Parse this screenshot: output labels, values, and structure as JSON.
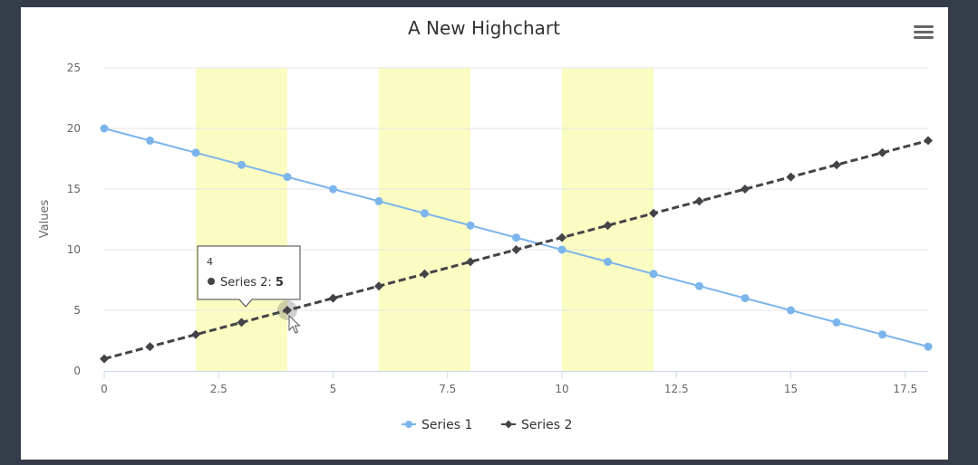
{
  "chart_data": {
    "type": "line",
    "title": "A New Highchart",
    "ylabel": "Values",
    "xlabel": "",
    "xlim": [
      0,
      18
    ],
    "ylim": [
      0,
      25
    ],
    "x_ticks": [
      0,
      2.5,
      5,
      7.5,
      10,
      12.5,
      15,
      17.5
    ],
    "y_ticks": [
      0,
      5,
      10,
      15,
      20,
      25
    ],
    "grid": "horizontal",
    "legend_position": "bottom-center",
    "plot_bands": [
      {
        "from": 2,
        "to": 4,
        "color": "#fbfcc2"
      },
      {
        "from": 6,
        "to": 8,
        "color": "#fbfcc2"
      },
      {
        "from": 10,
        "to": 12,
        "color": "#fbfcc2"
      }
    ],
    "series": [
      {
        "name": "Series 1",
        "color": "#7cb5ec",
        "marker": "circle",
        "dash": "solid",
        "x": [
          0,
          1,
          2,
          3,
          4,
          5,
          6,
          7,
          8,
          9,
          10,
          11,
          12,
          13,
          14,
          15,
          16,
          17,
          18
        ],
        "values": [
          20,
          19,
          18,
          17,
          16,
          15,
          14,
          13,
          12,
          11,
          10,
          9,
          8,
          7,
          6,
          5,
          4,
          3,
          2
        ]
      },
      {
        "name": "Series 2",
        "color": "#434348",
        "marker": "diamond",
        "dash": "dashed",
        "x": [
          0,
          1,
          2,
          3,
          4,
          5,
          6,
          7,
          8,
          9,
          10,
          11,
          12,
          13,
          14,
          15,
          16,
          17,
          18
        ],
        "values": [
          1,
          2,
          3,
          4,
          5,
          6,
          7,
          8,
          9,
          10,
          11,
          12,
          13,
          14,
          15,
          16,
          17,
          18,
          19
        ]
      }
    ],
    "tooltip": {
      "header": "4",
      "series_name": "Series 2",
      "value": "5",
      "x": 4,
      "y": 5,
      "series_color": "#434348"
    }
  },
  "menu": {
    "icon": "hamburger-menu-icon"
  }
}
